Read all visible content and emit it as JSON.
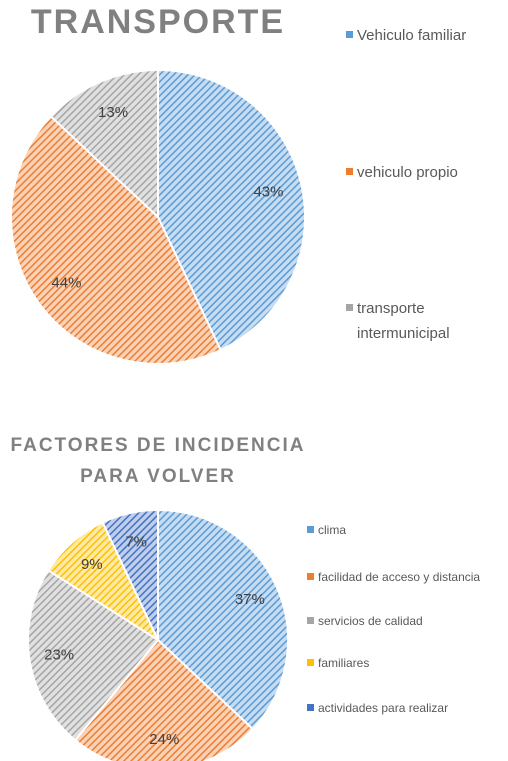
{
  "chart_data": [
    {
      "type": "pie",
      "title": "TRANSPORTE",
      "categories": [
        "Vehiculo familiar",
        "vehiculo propio",
        "transporte intermunicipal"
      ],
      "values": [
        43,
        44,
        13
      ],
      "value_labels": [
        "43%",
        "44%",
        "13%"
      ],
      "colors": [
        "#5b9bd5",
        "#ed7d31",
        "#a5a5a5"
      ],
      "legend": "right"
    },
    {
      "type": "pie",
      "title": "FACTORES DE INCIDENCIA PARA VOLVER",
      "categories": [
        "clima",
        "facilidad de acceso y distancia",
        "servicios de calidad",
        "familiares",
        "actividades para realizar"
      ],
      "values": [
        37,
        24,
        23,
        9,
        7
      ],
      "value_labels": [
        "37%",
        "24%",
        "23%",
        "9%",
        "7%"
      ],
      "colors": [
        "#5b9bd5",
        "#ed7d31",
        "#a5a5a5",
        "#ffc000",
        "#4472c4"
      ],
      "legend": "right"
    }
  ]
}
